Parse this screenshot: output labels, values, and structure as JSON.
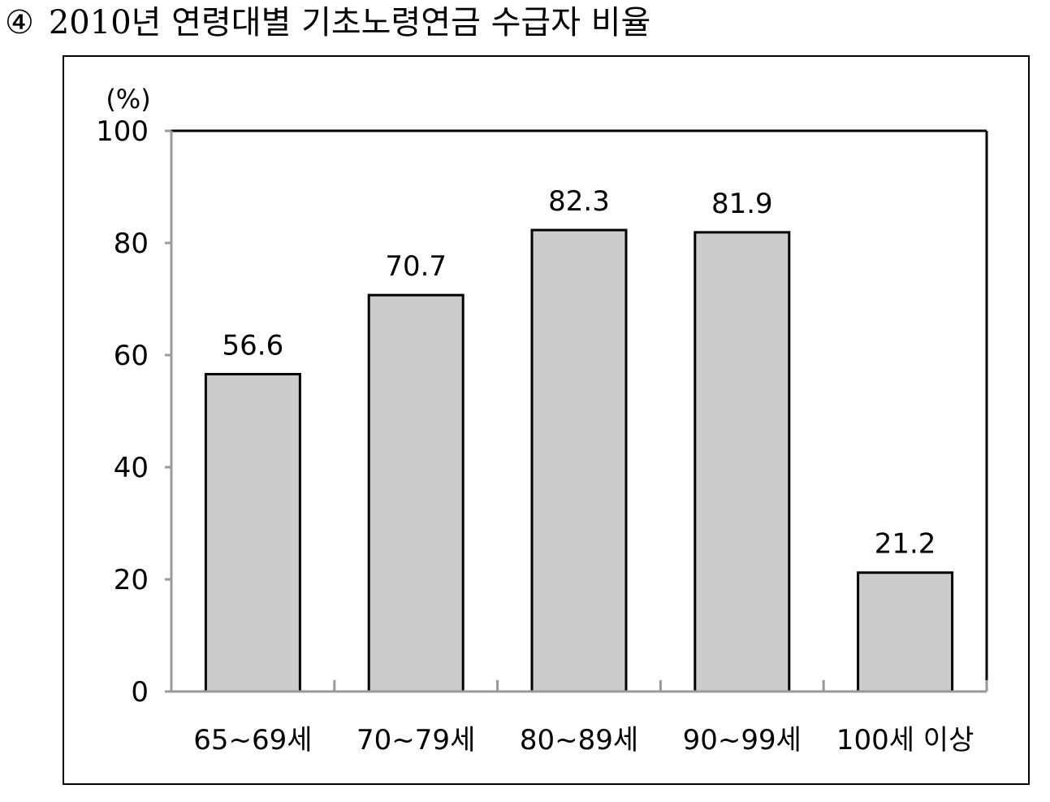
{
  "title": {
    "marker": "④",
    "text": "2010년 연령대별 기초노령연금 수급자 비율"
  },
  "chart_data": {
    "type": "bar",
    "title": "2010년 연령대별 기초노령연금 수급자 비율",
    "ylabel": "(%)",
    "xlabel": "",
    "categories": [
      "65~69세",
      "70~79세",
      "80~89세",
      "90~99세",
      "100세 이상"
    ],
    "values": [
      56.6,
      70.7,
      82.3,
      81.9,
      21.2
    ],
    "value_labels": [
      "56.6",
      "70.7",
      "82.3",
      "81.9",
      "21.2"
    ],
    "ylim": [
      0,
      100
    ],
    "yticks": [
      0,
      20,
      40,
      60,
      80,
      100
    ],
    "grid": false,
    "legend": "none",
    "colors": {
      "bar_fill": "#cccccc",
      "bar_stroke": "#000000",
      "axis": "#999999"
    }
  }
}
